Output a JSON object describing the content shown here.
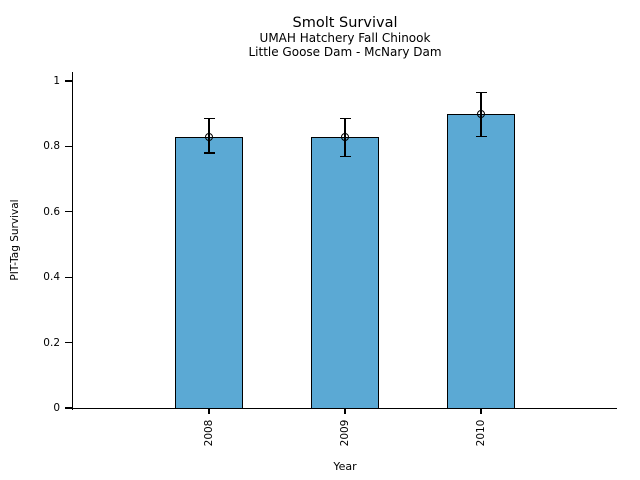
{
  "chart_data": {
    "type": "bar",
    "title": "Smolt Survival",
    "subtitles": [
      "UMAH Hatchery Fall Chinook",
      "Little Goose Dam - McNary Dam"
    ],
    "categories": [
      "2008",
      "2009",
      "2010"
    ],
    "values": [
      0.83,
      0.83,
      0.9
    ],
    "error_low": [
      0.78,
      0.77,
      0.83
    ],
    "error_high": [
      0.885,
      0.885,
      0.965
    ],
    "xlabel": "Year",
    "ylabel": "PIT-Tag Survival",
    "yticks": [
      0,
      0.2,
      0.4,
      0.6,
      0.8,
      1
    ],
    "ytick_labels": [
      "0",
      "0.2",
      "0.4",
      "0.6",
      "0.8",
      "1"
    ],
    "ylim": [
      0,
      1.03
    ],
    "bar_color": "#5BA9D4",
    "edge_color": "#000000",
    "marker": "open-circle",
    "legend": "none",
    "grid": false
  }
}
